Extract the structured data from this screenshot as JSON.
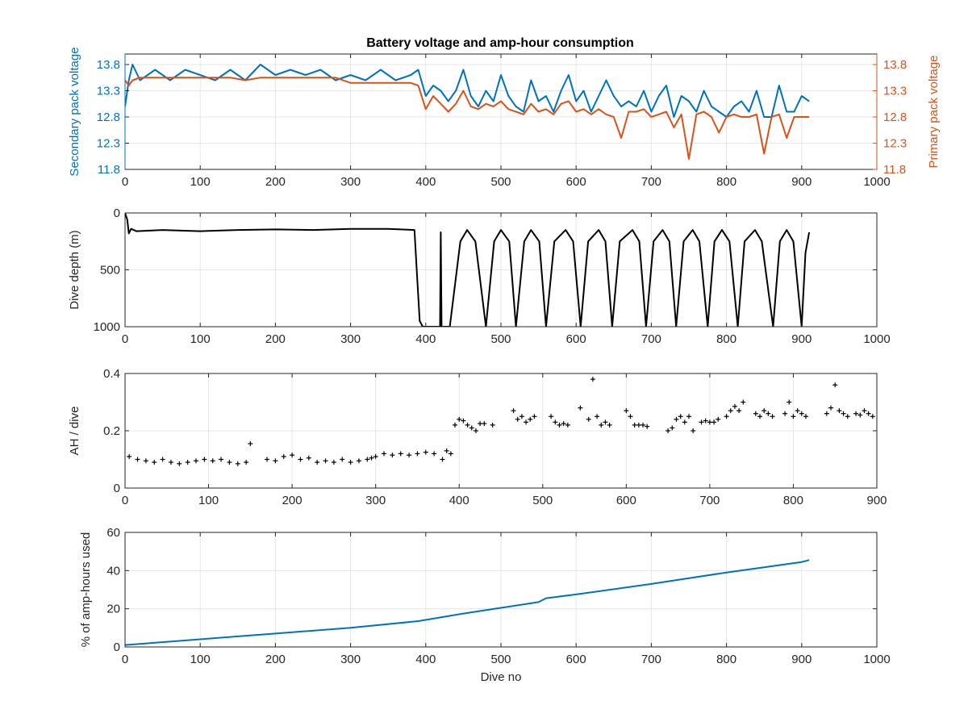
{
  "figure": {
    "title": "Battery voltage and amp-hour consumption"
  },
  "chart_data": [
    {
      "type": "line",
      "title": "Battery voltage and amp-hour consumption",
      "xlabel": "",
      "xlim": [
        0,
        1000
      ],
      "xticks": [
        "0",
        "100",
        "200",
        "300",
        "400",
        "500",
        "600",
        "700",
        "800",
        "900",
        "1000"
      ],
      "ylabel_left": "Secondary pack voltage",
      "ylabel_right": "Primary pack voltage",
      "ylim_left": [
        11.8,
        14.0
      ],
      "ylim_right": [
        11.8,
        14.0
      ],
      "yticks_left": [
        "11.8",
        "12.3",
        "12.8",
        "13.3",
        "13.8"
      ],
      "yticks_right": [
        "11.8",
        "12.3",
        "12.8",
        "13.3",
        "13.8"
      ],
      "grid": true,
      "colors": {
        "secondary": "#0072BD",
        "primary": "#D95319"
      },
      "series": [
        {
          "axis": "left",
          "x": [
            0,
            5,
            10,
            20,
            40,
            60,
            80,
            100,
            120,
            140,
            160,
            180,
            200,
            220,
            240,
            260,
            280,
            300,
            320,
            340,
            360,
            380,
            390,
            400,
            410,
            420,
            430,
            440,
            450,
            460,
            470,
            480,
            490,
            500,
            510,
            520,
            530,
            540,
            550,
            560,
            570,
            580,
            590,
            600,
            610,
            620,
            630,
            640,
            650,
            660,
            670,
            680,
            690,
            700,
            710,
            720,
            730,
            740,
            750,
            760,
            770,
            780,
            790,
            800,
            810,
            820,
            830,
            840,
            850,
            860,
            870,
            880,
            890,
            900,
            910
          ],
          "y": [
            13.0,
            13.5,
            13.8,
            13.5,
            13.7,
            13.5,
            13.7,
            13.6,
            13.5,
            13.7,
            13.5,
            13.8,
            13.6,
            13.7,
            13.6,
            13.7,
            13.5,
            13.6,
            13.5,
            13.7,
            13.5,
            13.6,
            13.7,
            13.2,
            13.4,
            13.3,
            13.1,
            13.3,
            13.7,
            13.2,
            13.0,
            13.3,
            13.1,
            13.6,
            13.2,
            13.0,
            12.9,
            13.5,
            13.1,
            13.2,
            12.9,
            13.3,
            13.6,
            13.1,
            13.3,
            12.9,
            13.2,
            13.5,
            13.2,
            13.0,
            13.1,
            13.0,
            13.3,
            12.9,
            13.2,
            13.4,
            12.8,
            13.2,
            13.1,
            12.9,
            13.3,
            13.0,
            12.9,
            12.8,
            13.0,
            13.1,
            12.9,
            13.3,
            12.8,
            12.8,
            13.4,
            12.9,
            12.9,
            13.2,
            13.1
          ]
        },
        {
          "axis": "right",
          "x": [
            0,
            5,
            10,
            20,
            40,
            60,
            80,
            100,
            120,
            140,
            160,
            180,
            200,
            220,
            240,
            260,
            280,
            300,
            320,
            340,
            360,
            380,
            390,
            400,
            410,
            420,
            430,
            440,
            450,
            460,
            470,
            480,
            490,
            500,
            510,
            520,
            530,
            540,
            550,
            560,
            570,
            580,
            590,
            600,
            610,
            620,
            630,
            640,
            650,
            660,
            670,
            680,
            690,
            700,
            710,
            720,
            730,
            740,
            750,
            760,
            770,
            780,
            790,
            800,
            810,
            820,
            830,
            840,
            850,
            860,
            870,
            880,
            890,
            900,
            910
          ],
          "y": [
            13.5,
            13.4,
            13.5,
            13.55,
            13.55,
            13.55,
            13.55,
            13.55,
            13.55,
            13.55,
            13.5,
            13.55,
            13.55,
            13.55,
            13.55,
            13.55,
            13.55,
            13.45,
            13.45,
            13.45,
            13.45,
            13.45,
            13.4,
            12.95,
            13.2,
            13.05,
            12.9,
            13.05,
            13.3,
            13.0,
            12.95,
            13.05,
            13.0,
            13.1,
            12.95,
            12.9,
            12.85,
            13.05,
            12.9,
            12.95,
            12.85,
            13.05,
            13.1,
            12.9,
            12.95,
            12.85,
            12.95,
            12.85,
            12.8,
            12.4,
            12.9,
            12.9,
            12.95,
            12.8,
            12.85,
            12.9,
            12.6,
            12.85,
            12.0,
            12.85,
            12.9,
            12.8,
            12.5,
            12.8,
            12.85,
            12.8,
            12.8,
            12.85,
            12.1,
            12.8,
            12.85,
            12.4,
            12.8,
            12.8,
            12.8
          ]
        }
      ]
    },
    {
      "type": "line",
      "xlabel": "",
      "ylabel": "Dive depth (m)",
      "xlim": [
        0,
        1000
      ],
      "ylim": [
        1000,
        0
      ],
      "xticks": [
        "0",
        "100",
        "200",
        "300",
        "400",
        "500",
        "600",
        "700",
        "800",
        "900",
        "1000"
      ],
      "yticks": [
        "0",
        "500",
        "1000"
      ],
      "grid": true,
      "color": "#000000",
      "series": [
        {
          "x": [
            0,
            3,
            5,
            8,
            15,
            50,
            100,
            150,
            200,
            250,
            300,
            350,
            385,
            388,
            392,
            396,
            410,
            419,
            420,
            421,
            432,
            446,
            455,
            466,
            480,
            491,
            500,
            511,
            520,
            531,
            540,
            551,
            560,
            571,
            586,
            596,
            606,
            616,
            630,
            639,
            648,
            658,
            675,
            684,
            693,
            703,
            715,
            724,
            733,
            743,
            755,
            764,
            775,
            784,
            794,
            804,
            815,
            824,
            838,
            847,
            862,
            871,
            880,
            889,
            900,
            905,
            910
          ],
          "y": [
            0,
            60,
            180,
            140,
            160,
            150,
            160,
            150,
            145,
            150,
            140,
            140,
            150,
            500,
            950,
            1000,
            1000,
            1000,
            170,
            1000,
            1000,
            250,
            150,
            250,
            1000,
            250,
            150,
            250,
            1000,
            250,
            150,
            250,
            1000,
            250,
            150,
            250,
            1000,
            250,
            150,
            250,
            1000,
            250,
            150,
            250,
            1000,
            250,
            150,
            250,
            1000,
            250,
            150,
            250,
            1000,
            250,
            150,
            250,
            1000,
            250,
            150,
            250,
            1000,
            250,
            150,
            250,
            1000,
            350,
            170
          ]
        }
      ]
    },
    {
      "type": "scatter",
      "xlabel": "",
      "ylabel": "AH / dive",
      "xlim": [
        0,
        900
      ],
      "ylim": [
        0,
        0.4
      ],
      "xticks": [
        "0",
        "100",
        "200",
        "300",
        "400",
        "500",
        "600",
        "700",
        "800",
        "900"
      ],
      "yticks": [
        "0",
        "0.2",
        "0.4"
      ],
      "grid": true,
      "color": "#000000",
      "series": [
        {
          "x": [
            5,
            15,
            25,
            35,
            45,
            55,
            65,
            75,
            85,
            95,
            105,
            115,
            125,
            135,
            145,
            150,
            170,
            180,
            190,
            200,
            210,
            220,
            230,
            240,
            250,
            260,
            270,
            280,
            290,
            295,
            300,
            310,
            320,
            330,
            340,
            350,
            360,
            370,
            380,
            385,
            390,
            395,
            400,
            405,
            410,
            415,
            420,
            425,
            430,
            440,
            465,
            470,
            475,
            480,
            485,
            490,
            510,
            515,
            520,
            525,
            530,
            545,
            555,
            560,
            565,
            570,
            575,
            580,
            600,
            605,
            610,
            615,
            620,
            625,
            650,
            655,
            660,
            665,
            670,
            675,
            680,
            690,
            695,
            700,
            705,
            710,
            720,
            725,
            730,
            735,
            740,
            755,
            760,
            765,
            770,
            775,
            790,
            795,
            800,
            805,
            810,
            815,
            840,
            845,
            850,
            855,
            860,
            865,
            875,
            880,
            885,
            890,
            895
          ],
          "y": [
            0.11,
            0.1,
            0.095,
            0.09,
            0.1,
            0.09,
            0.085,
            0.09,
            0.095,
            0.1,
            0.095,
            0.1,
            0.09,
            0.085,
            0.09,
            0.155,
            0.1,
            0.095,
            0.11,
            0.115,
            0.1,
            0.105,
            0.09,
            0.095,
            0.09,
            0.1,
            0.09,
            0.095,
            0.1,
            0.105,
            0.11,
            0.12,
            0.115,
            0.12,
            0.115,
            0.12,
            0.125,
            0.12,
            0.1,
            0.13,
            0.12,
            0.22,
            0.24,
            0.235,
            0.22,
            0.21,
            0.2,
            0.225,
            0.225,
            0.22,
            0.27,
            0.24,
            0.25,
            0.23,
            0.24,
            0.25,
            0.25,
            0.23,
            0.22,
            0.225,
            0.22,
            0.28,
            0.24,
            0.38,
            0.25,
            0.22,
            0.23,
            0.22,
            0.27,
            0.25,
            0.22,
            0.22,
            0.22,
            0.215,
            0.2,
            0.21,
            0.24,
            0.25,
            0.23,
            0.25,
            0.2,
            0.23,
            0.235,
            0.23,
            0.23,
            0.24,
            0.25,
            0.27,
            0.285,
            0.27,
            0.3,
            0.26,
            0.25,
            0.27,
            0.26,
            0.25,
            0.26,
            0.3,
            0.25,
            0.27,
            0.26,
            0.25,
            0.26,
            0.28,
            0.36,
            0.27,
            0.26,
            0.25,
            0.26,
            0.255,
            0.27,
            0.26,
            0.25
          ]
        }
      ]
    },
    {
      "type": "line",
      "xlabel": "Dive no",
      "ylabel": "% of amp-hours used",
      "xlim": [
        0,
        1000
      ],
      "ylim": [
        0,
        60
      ],
      "xticks": [
        "0",
        "100",
        "200",
        "300",
        "400",
        "500",
        "600",
        "700",
        "800",
        "900",
        "1000"
      ],
      "yticks": [
        "0",
        "20",
        "40",
        "60"
      ],
      "grid": true,
      "color": "#0072BD",
      "series": [
        {
          "x": [
            0,
            100,
            200,
            300,
            390,
            450,
            500,
            550,
            560,
            600,
            700,
            800,
            900,
            910
          ],
          "y": [
            1,
            4,
            7,
            10,
            13.5,
            17.5,
            20.5,
            23.5,
            25.5,
            27.5,
            33,
            39,
            44.5,
            45.5
          ]
        }
      ]
    }
  ]
}
